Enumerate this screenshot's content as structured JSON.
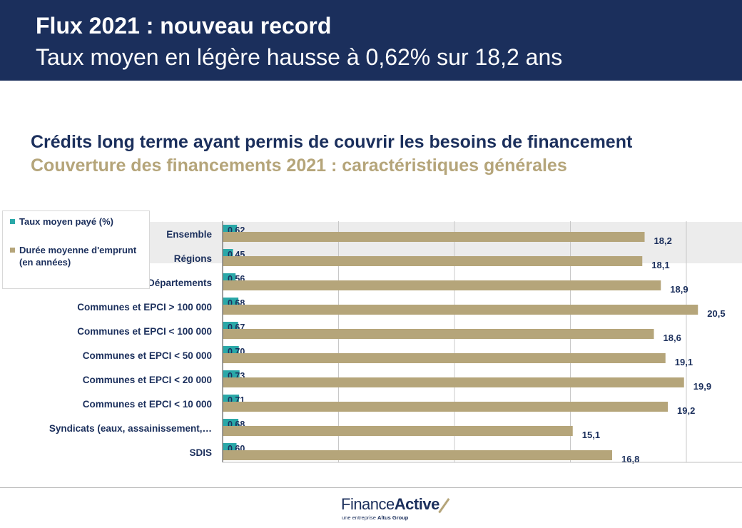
{
  "header": {
    "title": "Flux 2021 : nouveau record",
    "subtitle": "Taux moyen en légère hausse à 0,62% sur 18,2 ans"
  },
  "content": {
    "title": "Crédits long terme ayant permis de couvrir les besoins de financement",
    "subtitle": "Couverture des financements 2021 : caractéristiques générales"
  },
  "legend": {
    "items": [
      {
        "label": "Taux moyen payé (%)",
        "color": "#2aa8a8"
      },
      {
        "label": "Durée moyenne d'emprunt (en années)",
        "color": "#b5a57a"
      }
    ]
  },
  "chart_data": {
    "type": "bar",
    "orientation": "horizontal",
    "categories": [
      "Ensemble",
      "Régions",
      "Départements",
      "Communes et EPCI > 100 000",
      "Communes et EPCI < 100 000",
      "Communes et EPCI < 50 000",
      "Communes et EPCI < 20 000",
      "Communes et EPCI < 10 000",
      "Syndicats (eaux, assainissement,…",
      "SDIS"
    ],
    "series": [
      {
        "name": "Taux moyen payé (%)",
        "color": "#2aa8a8",
        "values": [
          0.62,
          0.45,
          0.56,
          0.68,
          0.67,
          0.7,
          0.73,
          0.71,
          0.68,
          0.6
        ],
        "labels": [
          "0,62",
          "0,45",
          "0,56",
          "0,68",
          "0,67",
          "0,70",
          "0,73",
          "0,71",
          "0,68",
          "0,60"
        ]
      },
      {
        "name": "Durée moyenne d'emprunt (en années)",
        "color": "#b5a57a",
        "values": [
          18.2,
          18.1,
          18.9,
          20.5,
          18.6,
          19.1,
          19.9,
          19.2,
          15.1,
          16.8
        ],
        "labels": [
          "18,2",
          "18,1",
          "18,9",
          "20,5",
          "18,6",
          "19,1",
          "19,9",
          "19,2",
          "15,1",
          "16,8"
        ]
      }
    ],
    "xlim": [
      0,
      25
    ],
    "grid": true,
    "legend_position": "top-left",
    "highlighted_category": "Ensemble"
  },
  "footer": {
    "logo_part1": "Finance",
    "logo_part2": "Active",
    "tagline_part1": "une entreprise ",
    "tagline_part2": "Altus Group"
  }
}
